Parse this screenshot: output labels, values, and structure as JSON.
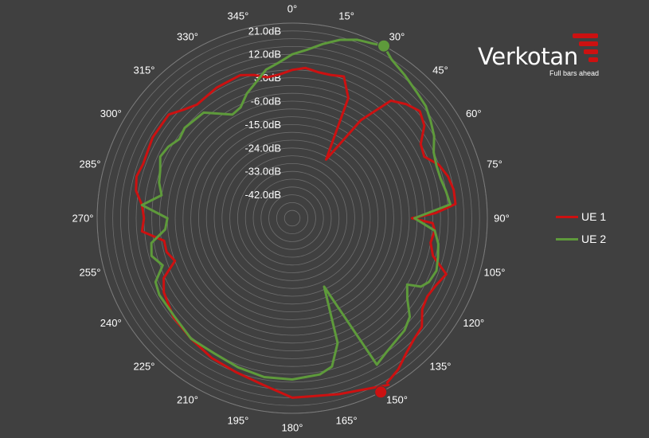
{
  "chart_data": {
    "type": "polar-line",
    "angular_ticks": [
      "0°",
      "15°",
      "30°",
      "45°",
      "60°",
      "75°",
      "90°",
      "105°",
      "120°",
      "135°",
      "150°",
      "165°",
      "180°",
      "195°",
      "210°",
      "225°",
      "240°",
      "255°",
      "270°",
      "285°",
      "300°",
      "315°",
      "330°",
      "345°"
    ],
    "radial_tick_labels": [
      "21.0dB",
      "12.0dB",
      "3.0dB",
      "-6.0dB",
      "-15.0dB",
      "-24.0dB",
      "-33.0dB",
      "-42.0dB"
    ],
    "radial_range_db": [
      -51,
      24
    ],
    "radial_ring_step_db": 3,
    "grid": true,
    "legend_position": "right",
    "series": [
      {
        "name": "UE 1",
        "color": "#cc1111",
        "marker": {
          "angle": 153,
          "value": 24
        },
        "points": [
          [
            150,
            23
          ],
          [
            165,
            19
          ],
          [
            180,
            18
          ],
          [
            190,
            14
          ],
          [
            200,
            12
          ],
          [
            210,
            11
          ],
          [
            220,
            9.5
          ],
          [
            230,
            8.5
          ],
          [
            240,
            6
          ],
          [
            245,
            3.5
          ],
          [
            250,
            -3
          ],
          [
            255,
            -1
          ],
          [
            260,
            -1
          ],
          [
            265,
            7
          ],
          [
            270,
            6
          ],
          [
            275,
            7
          ],
          [
            280,
            10
          ],
          [
            285,
            11
          ],
          [
            290,
            10
          ],
          [
            300,
            11
          ],
          [
            310,
            11
          ],
          [
            315,
            8
          ],
          [
            320,
            6
          ],
          [
            330,
            7
          ],
          [
            340,
            7.5
          ],
          [
            345,
            6
          ],
          [
            350,
            4
          ],
          [
            355,
            4.5
          ],
          [
            0,
            6
          ],
          [
            5,
            7
          ],
          [
            10,
            6
          ],
          [
            15,
            6
          ],
          [
            20,
            7
          ],
          [
            25,
            0
          ],
          [
            30,
            -25
          ],
          [
            35,
            -5
          ],
          [
            40,
            8
          ],
          [
            45,
            11
          ],
          [
            50,
            13
          ],
          [
            55,
            11
          ],
          [
            60,
            6
          ],
          [
            65,
            5
          ],
          [
            70,
            9
          ],
          [
            75,
            11
          ],
          [
            80,
            12
          ],
          [
            85,
            12
          ],
          [
            88,
            4
          ],
          [
            90,
            -5
          ],
          [
            92,
            3
          ],
          [
            95,
            4
          ],
          [
            100,
            3
          ],
          [
            105,
            5
          ],
          [
            110,
            12
          ],
          [
            115,
            10
          ],
          [
            120,
            9
          ],
          [
            125,
            10
          ],
          [
            130,
            14
          ],
          [
            135,
            15
          ],
          [
            140,
            17
          ],
          [
            145,
            20
          ],
          [
            150,
            22
          ]
        ]
      },
      {
        "name": "UE 2",
        "color": "#5e9a3b",
        "marker": {
          "angle": 28,
          "value": 24
        },
        "points": [
          [
            28,
            24
          ],
          [
            32,
            21
          ],
          [
            38,
            19
          ],
          [
            45,
            17
          ],
          [
            50,
            16
          ],
          [
            55,
            14
          ],
          [
            60,
            12
          ],
          [
            65,
            9
          ],
          [
            70,
            8
          ],
          [
            75,
            8
          ],
          [
            80,
            9
          ],
          [
            85,
            10
          ],
          [
            90,
            -4
          ],
          [
            95,
            4
          ],
          [
            100,
            6
          ],
          [
            105,
            7
          ],
          [
            110,
            8
          ],
          [
            115,
            7
          ],
          [
            118,
            5
          ],
          [
            120,
            0
          ],
          [
            125,
            3
          ],
          [
            130,
            8
          ],
          [
            135,
            10
          ],
          [
            145,
            12
          ],
          [
            150,
            14
          ],
          [
            155,
            -22
          ],
          [
            160,
            0
          ],
          [
            165,
            8
          ],
          [
            170,
            10
          ],
          [
            180,
            11
          ],
          [
            190,
            11
          ],
          [
            200,
            10
          ],
          [
            210,
            9
          ],
          [
            220,
            9.5
          ],
          [
            230,
            8
          ],
          [
            240,
            8
          ],
          [
            245,
            7
          ],
          [
            250,
            2
          ],
          [
            255,
            5
          ],
          [
            260,
            4
          ],
          [
            265,
            -2
          ],
          [
            270,
            -3
          ],
          [
            275,
            7
          ],
          [
            280,
            0
          ],
          [
            285,
            2
          ],
          [
            290,
            3
          ],
          [
            295,
            5
          ],
          [
            300,
            4
          ],
          [
            305,
            2
          ],
          [
            310,
            3
          ],
          [
            320,
            2
          ],
          [
            330,
            -5
          ],
          [
            335,
            -4
          ],
          [
            340,
            0
          ],
          [
            345,
            3
          ],
          [
            350,
            7
          ],
          [
            355,
            9
          ],
          [
            0,
            12
          ],
          [
            5,
            14
          ],
          [
            10,
            17
          ],
          [
            15,
            20
          ],
          [
            20,
            22
          ],
          [
            25,
            23
          ],
          [
            28,
            24
          ]
        ]
      }
    ]
  },
  "logo": {
    "word": "Verkotan",
    "tagline": "Full bars ahead",
    "color": "#cc1111"
  }
}
